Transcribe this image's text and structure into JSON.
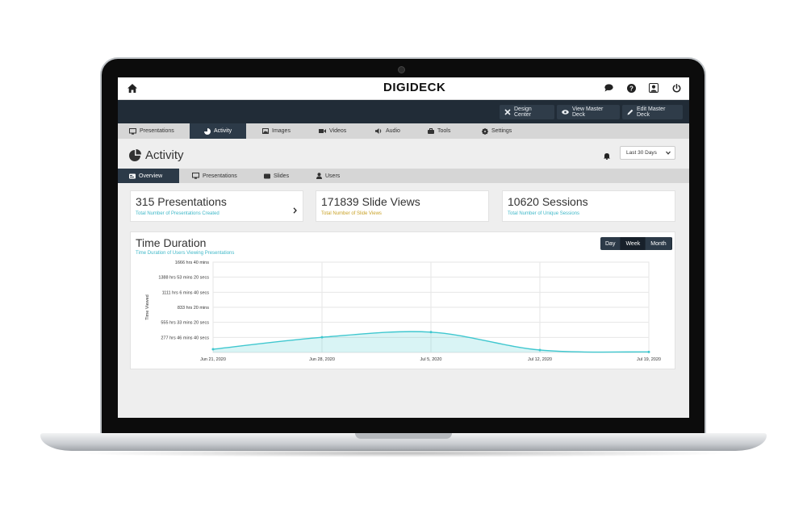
{
  "app": {
    "logo": "DIGIDECK"
  },
  "actions": {
    "design_center": "Design Center",
    "view_master_deck": "View Master Deck",
    "edit_master_deck": "Edit Master Deck"
  },
  "nav": {
    "tabs": [
      {
        "label": "Presentations",
        "icon": "monitor-icon"
      },
      {
        "label": "Activity",
        "icon": "pie-chart-icon",
        "active": true
      },
      {
        "label": "Images",
        "icon": "image-icon"
      },
      {
        "label": "Videos",
        "icon": "video-icon"
      },
      {
        "label": "Audio",
        "icon": "speaker-icon"
      },
      {
        "label": "Tools",
        "icon": "toolbox-icon"
      },
      {
        "label": "Settings",
        "icon": "gear-icon"
      }
    ]
  },
  "page": {
    "title": "Activity",
    "date_range": "Last 30 Days"
  },
  "subnav": {
    "tabs": [
      {
        "label": "Overview",
        "icon": "overview-icon",
        "active": true
      },
      {
        "label": "Presentations",
        "icon": "monitor-icon"
      },
      {
        "label": "Slides",
        "icon": "slides-icon"
      },
      {
        "label": "Users",
        "icon": "user-icon"
      }
    ]
  },
  "stats": {
    "presentations": {
      "title": "315 Presentations",
      "subtitle": "Total Number of Presentations Created",
      "color": "#3fb8c8"
    },
    "slide_views": {
      "title": "171839 Slide Views",
      "subtitle": "Total Number of Slide Views",
      "color": "#c9a227"
    },
    "sessions": {
      "title": "10620 Sessions",
      "subtitle": "Total Number of Unique Sessions",
      "color": "#3fb8c8"
    }
  },
  "time_chart": {
    "title": "Time Duration",
    "subtitle": "Time Duration of Users Viewing Presentations",
    "toggle": [
      "Day",
      "Week",
      "Month"
    ],
    "active_toggle": "Week"
  },
  "chart_data": {
    "type": "area",
    "title": "Time Duration",
    "ylabel": "Time Viewed",
    "xlabel": "",
    "x": [
      "Jun 21, 2020",
      "Jun 28, 2020",
      "Jul 5, 2020",
      "Jul 12, 2020",
      "Jul 19, 2020"
    ],
    "y_ticks": [
      "277 hrs 46 mins 40 secs",
      "555 hrs 33 mins 20 secs",
      "833 hrs 20 mins",
      "1111 hrs 6 mins 40 secs",
      "1388 hrs 53 mins 20 secs",
      "1666 hrs 40 mins"
    ],
    "y_tick_values": [
      277.78,
      555.56,
      833.33,
      1111.11,
      1388.89,
      1666.67
    ],
    "ylim": [
      0,
      1666.67
    ],
    "series": [
      {
        "values": [
          60,
          280,
          375,
          45,
          10
        ]
      }
    ],
    "grid": true,
    "color": "#3fc7cf"
  }
}
